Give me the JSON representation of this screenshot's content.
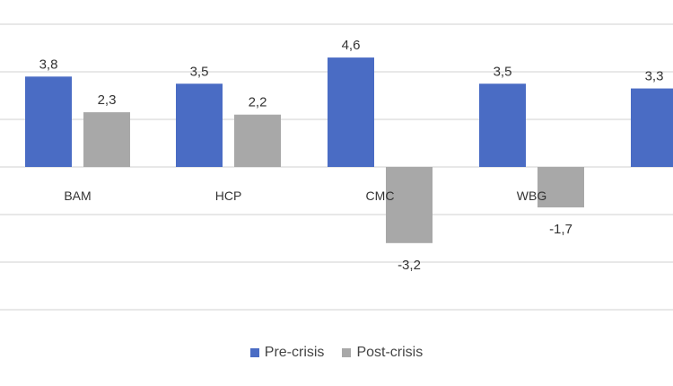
{
  "chart_data": {
    "type": "bar",
    "title": "",
    "xlabel": "",
    "ylabel": "",
    "categories": [
      "BAM",
      "HCP",
      "CMC",
      "WBG",
      ""
    ],
    "series": [
      {
        "name": "Pre-crisis",
        "color": "#4a6cc4",
        "values": [
          3.8,
          3.5,
          4.6,
          3.5,
          3.3
        ],
        "labels": [
          "3,8",
          "3,5",
          "4,6",
          "3,5",
          "3,3"
        ]
      },
      {
        "name": "Post-crisis",
        "color": "#a8a8a8",
        "values": [
          2.3,
          2.2,
          -3.2,
          -1.7,
          null
        ],
        "labels": [
          "2,3",
          "2,2",
          "-3,2",
          "-1,7",
          ""
        ]
      }
    ],
    "ylim": [
      -6,
      6
    ],
    "grid": true,
    "legend_position": "bottom"
  }
}
